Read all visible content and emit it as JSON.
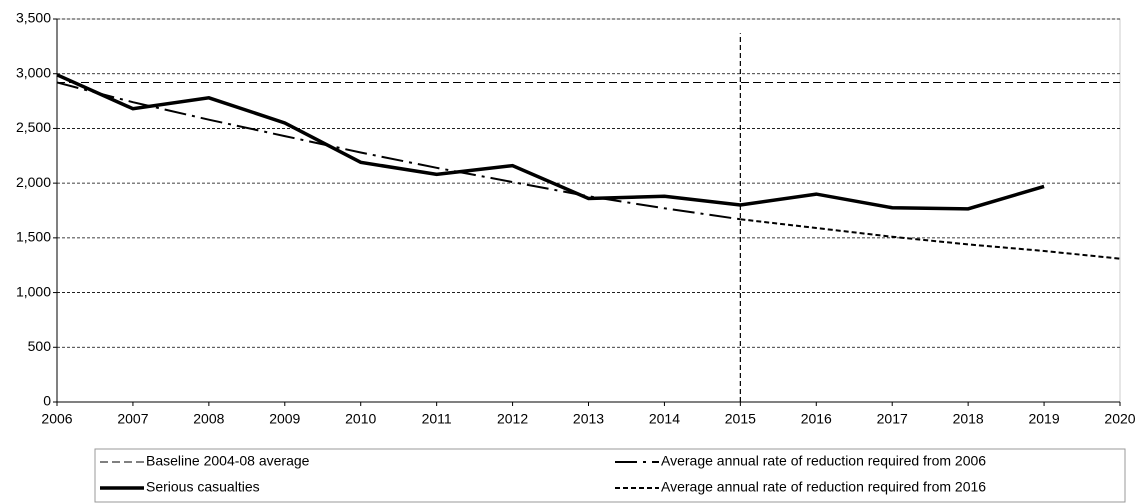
{
  "chart_data": {
    "type": "line",
    "x": [
      2006,
      2007,
      2008,
      2009,
      2010,
      2011,
      2012,
      2013,
      2014,
      2015,
      2016,
      2017,
      2018,
      2019,
      2020
    ],
    "xlim": [
      2006,
      2020
    ],
    "xticks": [
      2006,
      2007,
      2008,
      2009,
      2010,
      2011,
      2012,
      2013,
      2014,
      2015,
      2016,
      2017,
      2018,
      2019,
      2020
    ],
    "ylim": [
      0,
      3500
    ],
    "yticks": [
      0,
      500,
      {
        "value": 1000,
        "label": "1,000"
      },
      {
        "value": 1500,
        "label": "1,500"
      },
      {
        "value": 2000,
        "label": "2,000"
      },
      {
        "value": 2500,
        "label": "2,500"
      },
      {
        "value": 3000,
        "label": "3,000"
      },
      {
        "value": 3500,
        "label": "3,500"
      }
    ],
    "grid": true,
    "marker_line": {
      "x": 2015,
      "y": [
        0,
        3370
      ]
    },
    "series": [
      {
        "name": "Baseline 2004-08 average",
        "color": "#000000",
        "dash": "8,4",
        "width": 1,
        "values": [
          2920,
          2920,
          2920,
          2920,
          2920,
          2920,
          2920,
          2920,
          2920,
          2920,
          2920,
          2920,
          2920,
          2920,
          2920
        ]
      },
      {
        "name": "Average annual rate of reduction required from 2006",
        "color": "#000000",
        "dash": "22,6,3,6",
        "width": 2,
        "values": [
          2920,
          2740,
          2580,
          2430,
          2280,
          2140,
          2010,
          1880,
          1770,
          1670,
          null,
          null,
          null,
          null,
          null
        ]
      },
      {
        "name": "Serious casualties",
        "color": "#000000",
        "dash": "none",
        "width": 3.5,
        "values": [
          2990,
          2680,
          2780,
          2550,
          2190,
          2080,
          2160,
          1860,
          1880,
          1800,
          1900,
          1775,
          1765,
          1970,
          null
        ]
      },
      {
        "name": "Average annual rate of reduction required from 2016",
        "color": "#000000",
        "dash": "5,3",
        "width": 2,
        "values": [
          null,
          null,
          null,
          null,
          null,
          null,
          null,
          null,
          null,
          1670,
          1590,
          1510,
          1440,
          1380,
          1310
        ]
      }
    ]
  }
}
